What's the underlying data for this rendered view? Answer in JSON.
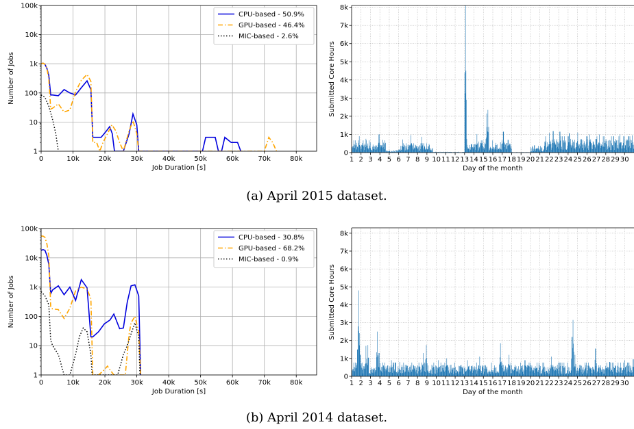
{
  "captions": {
    "a": "(a) April 2015 dataset.",
    "b": "(b) April 2014 dataset."
  },
  "colors": {
    "cpu": "#0000dd",
    "gpu": "#ffa500",
    "mic": "#000000",
    "bars": "#1f77b4",
    "grid": "#b0b0b0"
  },
  "chart_data": [
    {
      "id": "a-left",
      "type": "line",
      "xlabel": "Job Duration [s]",
      "ylabel": "Number of Jobs",
      "xlim": [
        0,
        86400
      ],
      "ylim": [
        1,
        100000
      ],
      "yscale": "log",
      "xticks": [
        0,
        10000,
        20000,
        30000,
        40000,
        50000,
        60000,
        70000,
        80000
      ],
      "xtick_labels": [
        "0",
        "10k",
        "20k",
        "30k",
        "40k",
        "50k",
        "60k",
        "70k",
        "80k"
      ],
      "yticks": [
        1,
        10,
        100,
        1000,
        10000,
        100000
      ],
      "ytick_labels": [
        "1",
        "10",
        "100",
        "1k",
        "10k",
        "100k"
      ],
      "grid": true,
      "legend": "top-right",
      "series": [
        {
          "name": "CPU-based - 50.9%",
          "style": "solid",
          "x": [
            0,
            600,
            1200,
            1800,
            2400,
            3000,
            3600,
            5400,
            7200,
            9000,
            10800,
            12600,
            14400,
            15600,
            16200,
            17400,
            18800,
            20500,
            21500,
            22300,
            23000,
            25800,
            27600,
            28800,
            30000,
            30600,
            50600,
            51600,
            54600,
            55600,
            56600,
            57600,
            59600,
            61600,
            62600
          ],
          "y": [
            1000,
            1050,
            950,
            700,
            400,
            85,
            85,
            80,
            130,
            100,
            85,
            150,
            260,
            130,
            3,
            3,
            3,
            5,
            7,
            4,
            1,
            1,
            4,
            19,
            8,
            1,
            1,
            3,
            3,
            1,
            1,
            3,
            2,
            2,
            1
          ]
        },
        {
          "name": "GPU-based - 46.4%",
          "style": "dashdot",
          "x": [
            0,
            600,
            1200,
            1800,
            2400,
            3000,
            3600,
            5400,
            7200,
            9000,
            10800,
            12600,
            14400,
            15600,
            16200,
            17400,
            18400,
            19400,
            20800,
            22200,
            23400,
            24600,
            25800,
            27600,
            28800,
            30000,
            30600,
            70000,
            71400,
            72600,
            73800
          ],
          "y": [
            1000,
            1050,
            950,
            700,
            300,
            28,
            30,
            42,
            22,
            26,
            110,
            270,
            430,
            250,
            2,
            2,
            1,
            2,
            4,
            8,
            5,
            2,
            1,
            5,
            11,
            4,
            1,
            1,
            3,
            2,
            1
          ]
        },
        {
          "name": "MIC-based - 2.6%",
          "style": "dotted",
          "x": [
            0,
            1200,
            2400,
            3600,
            4600,
            5400
          ],
          "y": [
            85,
            70,
            35,
            12,
            4,
            1
          ]
        }
      ]
    },
    {
      "id": "a-right",
      "type": "bar",
      "xlabel": "Day of the month",
      "ylabel": "Submitted Core Hours",
      "xlim": [
        1,
        31
      ],
      "ylim": [
        0,
        8100
      ],
      "yticks": [
        0,
        1000,
        2000,
        3000,
        4000,
        5000,
        6000,
        7000,
        8000
      ],
      "ytick_labels": [
        "0",
        "1k",
        "2k",
        "3k",
        "4k",
        "5k",
        "6k",
        "7k",
        "8k"
      ],
      "xtick_labels": [
        "1",
        "2",
        "3",
        "4",
        "5",
        "6",
        "7",
        "8",
        "9",
        "10",
        "11",
        "12",
        "13",
        "14",
        "15",
        "16",
        "17",
        "18",
        "19",
        "20",
        "21",
        "22",
        "23",
        "24",
        "25",
        "26",
        "27",
        "28",
        "29",
        "30"
      ],
      "grid": true,
      "bars_per_day": 24,
      "baseline": 180,
      "segments": [
        {
          "from": 1.0,
          "to": 4.6,
          "level": 420
        },
        {
          "from": 4.6,
          "to": 6.0,
          "level": 80
        },
        {
          "from": 6.0,
          "to": 9.6,
          "level": 320
        },
        {
          "from": 9.6,
          "to": 13.0,
          "level": 30
        },
        {
          "from": 13.0,
          "to": 14.6,
          "level": 380
        },
        {
          "from": 14.6,
          "to": 18.0,
          "level": 420
        },
        {
          "from": 18.0,
          "to": 20.0,
          "level": 20
        },
        {
          "from": 20.0,
          "to": 21.5,
          "level": 230
        },
        {
          "from": 21.5,
          "to": 31.0,
          "level": 560
        }
      ],
      "peaks": [
        {
          "x": 13.1,
          "v": 8100
        },
        {
          "x": 13.2,
          "v": 750
        },
        {
          "x": 15.45,
          "v": 2350
        },
        {
          "x": 15.35,
          "v": 2150
        },
        {
          "x": 1.8,
          "v": 900
        },
        {
          "x": 2.5,
          "v": 760
        },
        {
          "x": 3.9,
          "v": 1000
        },
        {
          "x": 4.3,
          "v": 700
        },
        {
          "x": 6.4,
          "v": 720
        },
        {
          "x": 7.3,
          "v": 960
        },
        {
          "x": 8.4,
          "v": 870
        },
        {
          "x": 9.2,
          "v": 480
        },
        {
          "x": 14.3,
          "v": 1020
        },
        {
          "x": 17.1,
          "v": 1150
        },
        {
          "x": 17.6,
          "v": 700
        },
        {
          "x": 20.4,
          "v": 400
        },
        {
          "x": 22.0,
          "v": 1080
        },
        {
          "x": 22.4,
          "v": 1180
        },
        {
          "x": 23.1,
          "v": 1150
        },
        {
          "x": 24.1,
          "v": 1060
        },
        {
          "x": 25.0,
          "v": 1100
        },
        {
          "x": 26.3,
          "v": 1000
        },
        {
          "x": 27.3,
          "v": 1000
        },
        {
          "x": 29.5,
          "v": 990
        },
        {
          "x": 30.8,
          "v": 950
        }
      ]
    },
    {
      "id": "b-left",
      "type": "line",
      "xlabel": "Job Duration [s]",
      "ylabel": "Number of Jobs",
      "xlim": [
        0,
        86400
      ],
      "ylim": [
        1,
        100000
      ],
      "yscale": "log",
      "xticks": [
        0,
        10000,
        20000,
        30000,
        40000,
        50000,
        60000,
        70000,
        80000
      ],
      "xtick_labels": [
        "0",
        "10k",
        "20k",
        "30k",
        "40k",
        "50k",
        "60k",
        "70k",
        "80k"
      ],
      "yticks": [
        1,
        10,
        100,
        1000,
        10000,
        100000
      ],
      "ytick_labels": [
        "1",
        "10",
        "100",
        "1k",
        "10k",
        "100k"
      ],
      "grid": true,
      "legend": "top-right",
      "series": [
        {
          "name": "CPU-based - 30.8%",
          "style": "solid",
          "x": [
            0,
            600,
            1200,
            1800,
            2400,
            3000,
            3600,
            5400,
            7200,
            9000,
            10800,
            12600,
            14400,
            15600,
            16200,
            18000,
            19800,
            21600,
            22800,
            24600,
            25800,
            27000,
            28200,
            29400,
            30600,
            31200
          ],
          "y": [
            18000,
            19000,
            18000,
            12000,
            6000,
            600,
            800,
            1100,
            550,
            1000,
            350,
            1800,
            950,
            20,
            20,
            30,
            55,
            75,
            120,
            38,
            40,
            300,
            1100,
            1200,
            500,
            1
          ]
        },
        {
          "name": "GPU-based - 68.2%",
          "style": "dashdot",
          "x": [
            0,
            600,
            1200,
            1800,
            2400,
            3000,
            3600,
            5400,
            7200,
            9000,
            10800,
            12600,
            14400,
            15600,
            16200,
            18000,
            19800,
            20800,
            21600,
            22800,
            26400,
            27600,
            28200,
            29400,
            30600,
            31200
          ],
          "y": [
            55000,
            55000,
            50000,
            30000,
            12000,
            200,
            180,
            170,
            85,
            190,
            750,
            1000,
            850,
            400,
            1,
            1,
            1.5,
            2,
            1.5,
            1,
            1,
            25,
            60,
            100,
            30,
            1
          ]
        },
        {
          "name": "MIC-based - 0.9%",
          "style": "dotted",
          "x": [
            0,
            1200,
            2400,
            3000,
            3600,
            5400,
            7200,
            9000,
            10800,
            12000,
            13200,
            14400,
            15600,
            16000,
            24000,
            25800,
            27000,
            28200,
            29400,
            30600,
            31000
          ],
          "y": [
            700,
            500,
            250,
            15,
            10,
            5,
            1,
            1,
            5,
            20,
            40,
            30,
            5,
            1,
            1,
            5,
            10,
            25,
            60,
            20,
            1
          ]
        }
      ]
    },
    {
      "id": "b-right",
      "type": "bar",
      "xlabel": "Day of the month",
      "ylabel": "Submitted Core Hours",
      "xlim": [
        1,
        31
      ],
      "ylim": [
        0,
        8300
      ],
      "yticks": [
        0,
        1000,
        2000,
        3000,
        4000,
        5000,
        6000,
        7000,
        8000
      ],
      "ytick_labels": [
        "0",
        "1k",
        "2k",
        "3k",
        "4k",
        "5k",
        "6k",
        "7k",
        "8k"
      ],
      "xtick_labels": [
        "1",
        "2",
        "3",
        "4",
        "5",
        "6",
        "7",
        "8",
        "9",
        "10",
        "11",
        "12",
        "13",
        "14",
        "15",
        "16",
        "17",
        "18",
        "19",
        "20",
        "21",
        "22",
        "23",
        "24",
        "25",
        "26",
        "27",
        "28",
        "29",
        "30"
      ],
      "grid": true,
      "bars_per_day": 24,
      "baseline": 260,
      "segments": [
        {
          "from": 1.0,
          "to": 31.0,
          "level": 480
        }
      ],
      "peaks": [
        {
          "x": 1.6,
          "v": 1500
        },
        {
          "x": 1.75,
          "v": 4800
        },
        {
          "x": 1.9,
          "v": 1200
        },
        {
          "x": 2.5,
          "v": 1700
        },
        {
          "x": 2.7,
          "v": 1750
        },
        {
          "x": 3.7,
          "v": 2500
        },
        {
          "x": 3.9,
          "v": 1300
        },
        {
          "x": 5.2,
          "v": 900
        },
        {
          "x": 6.1,
          "v": 800
        },
        {
          "x": 8.9,
          "v": 1750
        },
        {
          "x": 8.6,
          "v": 1300
        },
        {
          "x": 10.2,
          "v": 900
        },
        {
          "x": 11.1,
          "v": 1000
        },
        {
          "x": 13.3,
          "v": 900
        },
        {
          "x": 14.6,
          "v": 1100
        },
        {
          "x": 16.8,
          "v": 1850
        },
        {
          "x": 17.7,
          "v": 1200
        },
        {
          "x": 19.4,
          "v": 900
        },
        {
          "x": 22.2,
          "v": 1100
        },
        {
          "x": 24.5,
          "v": 3150
        },
        {
          "x": 24.4,
          "v": 2200
        },
        {
          "x": 24.7,
          "v": 1200
        },
        {
          "x": 26.9,
          "v": 1550
        },
        {
          "x": 28.4,
          "v": 800
        },
        {
          "x": 30.0,
          "v": 900
        },
        {
          "x": 30.9,
          "v": 950
        }
      ]
    }
  ]
}
